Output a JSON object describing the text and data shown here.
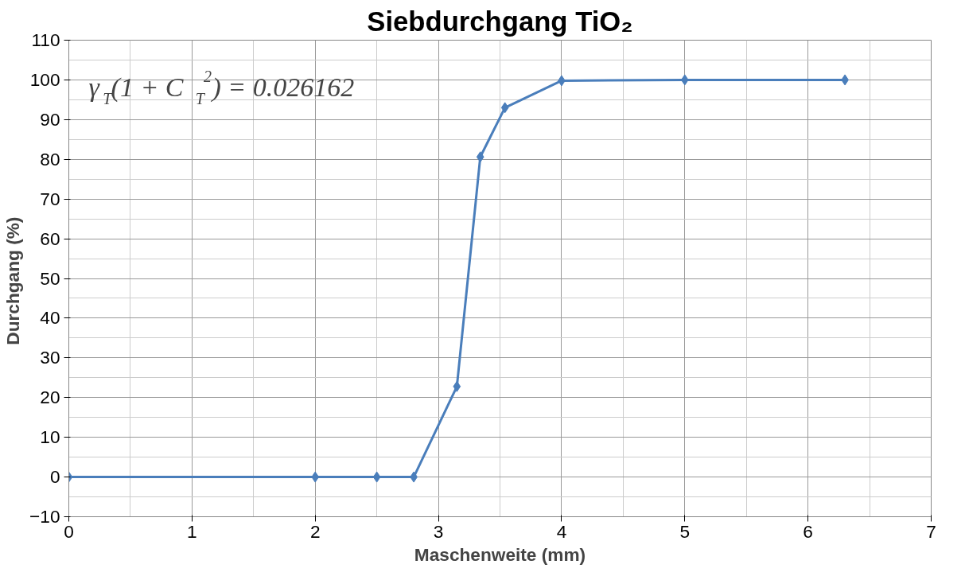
{
  "chart_data": {
    "type": "line",
    "title": "Siebdurchgang TiO₂",
    "xlabel": "Maschenweite (mm)",
    "ylabel": "Durchgang  (%)",
    "annotations": [
      "γ$_{T}$(1 + C$_{T}$$^{2}$) = 0.026162"
    ],
    "series": [
      {
        "color": "#4a7ebb",
        "x": [
          0,
          2,
          2.5,
          2.8,
          3.15,
          3.34,
          3.54,
          4,
          5,
          6.3
        ],
        "values": [
          0,
          0,
          0,
          0,
          22.8,
          80.6,
          93.0,
          99.8,
          100,
          100
        ]
      }
    ],
    "xlim": [
      0,
      7
    ],
    "xticks": [
      0,
      1,
      2,
      3,
      4,
      5,
      6,
      7
    ],
    "ylim": [
      -10,
      110
    ],
    "yticks": [
      -10,
      0,
      10,
      20,
      30,
      40,
      50,
      60,
      70,
      80,
      90,
      100,
      110
    ],
    "grid": true,
    "marker": "diamond",
    "line_style": "solid"
  }
}
